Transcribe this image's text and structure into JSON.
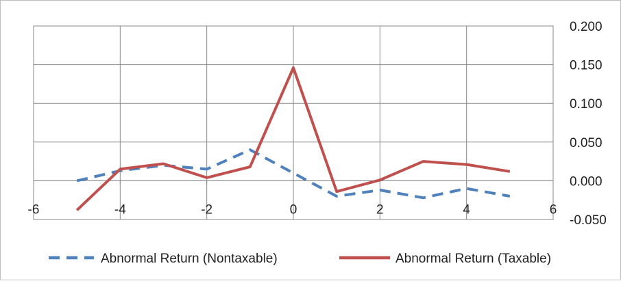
{
  "chart_data": {
    "type": "line",
    "title": "",
    "xlabel": "",
    "ylabel": "",
    "x": [
      -5,
      -4,
      -3,
      -2,
      -1,
      0,
      1,
      2,
      3,
      4,
      5
    ],
    "xlim": [
      -6,
      6
    ],
    "ylim": [
      -0.05,
      0.2
    ],
    "x_ticks": [
      -6,
      -4,
      -2,
      0,
      2,
      4,
      6
    ],
    "x_tick_labels": [
      "-6",
      "-4",
      "-2",
      "0",
      "2",
      "4",
      "6"
    ],
    "y_ticks": [
      -0.05,
      0,
      0.05,
      0.1,
      0.15,
      0.2
    ],
    "y_tick_labels": [
      "-0.050",
      "0.000",
      "0.050",
      "0.100",
      "0.150",
      "0.200"
    ],
    "y_axis_side": "right",
    "grid": true,
    "legend_position": "bottom",
    "series": [
      {
        "name": "Abnormal Return (Nontaxable)",
        "color": "#4f81bd",
        "style": "dashed",
        "values": [
          0.0,
          0.013,
          0.02,
          0.015,
          0.04,
          0.01,
          -0.02,
          -0.012,
          -0.022,
          -0.01,
          -0.02
        ]
      },
      {
        "name": "Abnormal Return (Taxable)",
        "color": "#c0504d",
        "style": "solid",
        "values": [
          -0.038,
          0.015,
          0.022,
          0.004,
          0.018,
          0.146,
          -0.014,
          0.001,
          0.025,
          0.021,
          0.012
        ]
      }
    ]
  }
}
